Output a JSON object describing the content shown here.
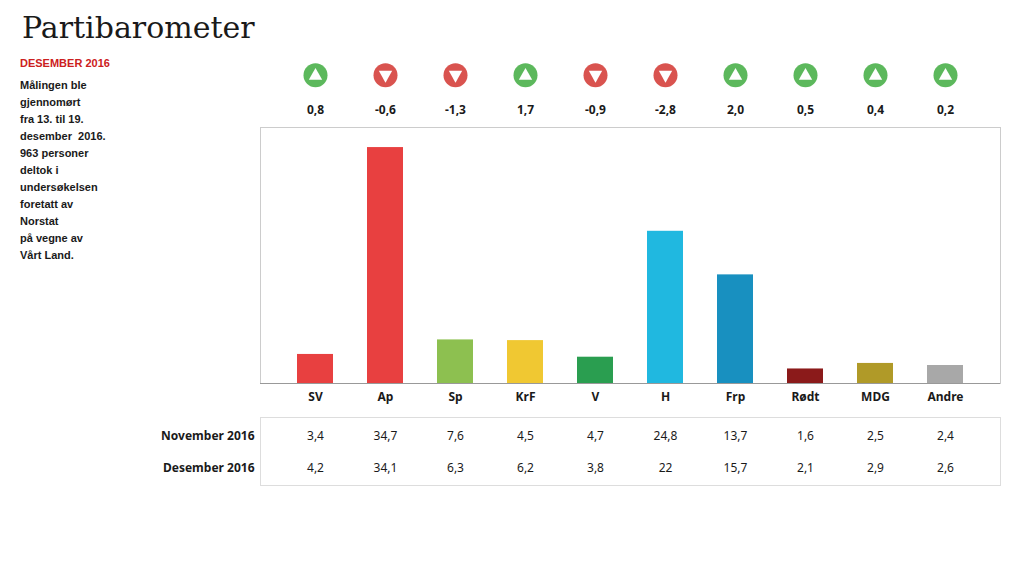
{
  "chart_data": {
    "type": "bar",
    "title": "Partibarometer",
    "subtitle": "DESEMBER 2016",
    "annotations": [
      "Målingen ble\ngjennomørt\nfra 13. til 19.\ndesember  2016.\n963 personer\ndeltok i\nundersøkelsen\nforetatt av\nNorstat\npå vegne av\nVårt Land."
    ],
    "categories": [
      "SV",
      "Ap",
      "Sp",
      "KrF",
      "V",
      "H",
      "Frp",
      "Rødt",
      "MDG",
      "Andre"
    ],
    "values": [
      4.2,
      34.1,
      6.3,
      6.2,
      3.8,
      22.0,
      15.7,
      2.1,
      2.9,
      2.6
    ],
    "colors": [
      "#e84040",
      "#e84040",
      "#8dc050",
      "#f0c832",
      "#2a9e50",
      "#20b8e0",
      "#1890c0",
      "#8b1a1a",
      "#b09a28",
      "#a8a8a8"
    ],
    "ylim": [
      0,
      37
    ],
    "tick_labels": "x",
    "changes": [
      0.8,
      -0.6,
      -1.3,
      1.7,
      -0.9,
      -2.8,
      2.0,
      0.5,
      0.4,
      0.2
    ],
    "change_labels": [
      "0,8",
      "-0,6",
      "-1,3",
      "1,7",
      "-0,9",
      "-2,8",
      "2,0",
      "0,5",
      "0,4",
      "0,2"
    ],
    "change_colors": {
      "positive": "#5cb85c",
      "negative": "#d9534f"
    },
    "table": [
      {
        "name": "November 2016",
        "values": [
          3.4,
          34.7,
          7.6,
          4.5,
          4.7,
          24.8,
          13.7,
          1.6,
          2.5,
          2.4
        ],
        "value_labels": [
          "3,4",
          "34,7",
          "7,6",
          "4,5",
          "4,7",
          "24,8",
          "13,7",
          "1,6",
          "2,5",
          "2,4"
        ]
      },
      {
        "name": "Desember 2016",
        "values": [
          4.2,
          34.1,
          6.3,
          6.2,
          3.8,
          22.0,
          15.7,
          2.1,
          2.9,
          2.6
        ],
        "value_labels": [
          "4,2",
          "34,1",
          "6,3",
          "6,2",
          "3,8",
          "22",
          "15,7",
          "2,1",
          "2,9",
          "2,6"
        ]
      }
    ]
  }
}
